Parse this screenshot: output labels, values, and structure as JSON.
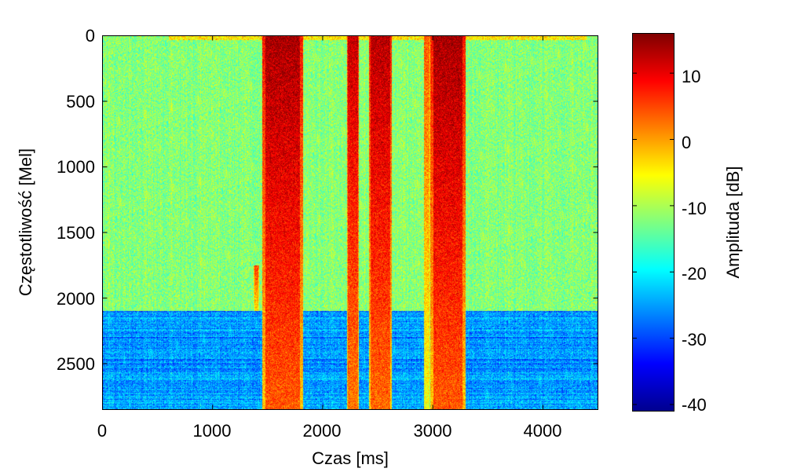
{
  "chart_data": {
    "type": "heatmap",
    "xlabel": "Czas [ms]",
    "ylabel": "Częstotliwość [Mel]",
    "colorbar_label": "Amplituda [dB]",
    "xlim": [
      0,
      4500
    ],
    "ylim": [
      2850,
      0
    ],
    "clim": [
      -41,
      16
    ],
    "colormap": "jet",
    "x_ticks": [
      0,
      1000,
      2000,
      3000,
      4000
    ],
    "x_tick_labels": [
      "0",
      "1000",
      "2000",
      "3000",
      "4000"
    ],
    "y_ticks": [
      0,
      500,
      1000,
      1500,
      2000,
      2500
    ],
    "y_tick_labels": [
      "0",
      "500",
      "1000",
      "1500",
      "2000",
      "2500"
    ],
    "colorbar_ticks": [
      10,
      0,
      -10,
      -20,
      -30,
      -40
    ],
    "colorbar_tick_labels": [
      "10",
      "0",
      "-10",
      "-20",
      "-30",
      "-40"
    ],
    "background_levels_db": [
      {
        "freq_range_mel": [
          0,
          2100
        ],
        "level_db": -12
      },
      {
        "freq_range_mel": [
          2100,
          2850
        ],
        "level_db": -25
      }
    ],
    "energy_regions": [
      {
        "time_ms": [
          1370,
          1420
        ],
        "freq_mel": [
          1750,
          2100
        ],
        "peak_db": 6
      },
      {
        "time_ms": [
          1450,
          1820
        ],
        "freq_mel": [
          0,
          2850
        ],
        "peak_db": 14
      },
      {
        "time_ms": [
          2220,
          2330
        ],
        "freq_mel": [
          0,
          2850
        ],
        "peak_db": 12
      },
      {
        "time_ms": [
          2420,
          2630
        ],
        "freq_mel": [
          0,
          2850
        ],
        "peak_db": 13
      },
      {
        "time_ms": [
          2920,
          2980
        ],
        "freq_mel": [
          0,
          2850
        ],
        "peak_db": 4
      },
      {
        "time_ms": [
          2980,
          3300
        ],
        "freq_mel": [
          0,
          2850
        ],
        "peak_db": 14
      }
    ]
  }
}
